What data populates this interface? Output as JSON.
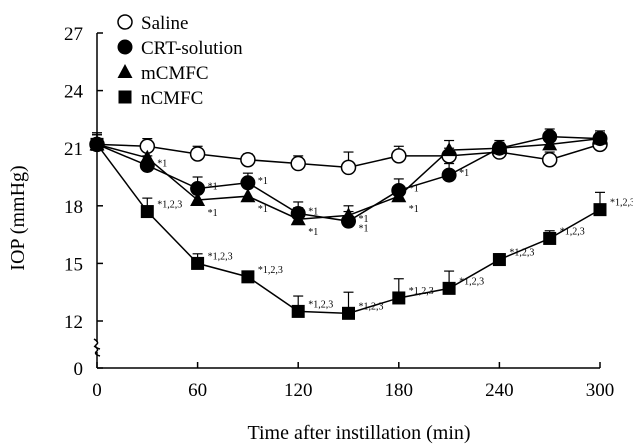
{
  "chart_data": {
    "type": "line",
    "title": "",
    "xlabel": "Time after instillation (min)",
    "ylabel": "IOP (mmHg)",
    "xlim": [
      0,
      300
    ],
    "ylim": [
      0,
      27
    ],
    "y_axis_break": true,
    "x_ticks": [
      0,
      60,
      120,
      180,
      240,
      300
    ],
    "y_ticks": [
      0,
      12,
      15,
      18,
      21,
      24,
      27
    ],
    "grid": false,
    "legend_position": "top-left",
    "x": [
      0,
      30,
      60,
      90,
      120,
      150,
      180,
      210,
      240,
      270,
      300
    ],
    "series": [
      {
        "name": "Saline",
        "marker": "circle-open",
        "color": "#000000",
        "values": [
          21.2,
          21.1,
          20.7,
          20.4,
          20.2,
          20.0,
          20.6,
          20.6,
          20.8,
          20.4,
          21.2
        ],
        "errors": [
          0.5,
          0.4,
          0.4,
          0.3,
          0.4,
          0.8,
          0.5,
          0.4,
          0.3,
          0.4,
          0.3
        ],
        "labels": [
          "",
          "",
          "",
          "",
          "",
          "",
          "",
          "",
          "",
          "",
          ""
        ]
      },
      {
        "name": "CRT-solution",
        "marker": "circle-filled",
        "color": "#000000",
        "values": [
          21.2,
          20.1,
          18.9,
          19.2,
          17.6,
          17.2,
          18.8,
          19.6,
          21.0,
          21.6,
          21.5
        ],
        "errors": [
          0.6,
          0.5,
          0.6,
          0.5,
          0.6,
          0.5,
          0.6,
          0.6,
          0.3,
          0.4,
          0.3
        ],
        "labels": [
          "",
          "*1",
          "*1",
          "*1",
          "*1",
          "*1",
          "*1",
          "*1",
          "",
          "",
          ""
        ]
      },
      {
        "name": "mCMFC",
        "marker": "triangle-filled",
        "color": "#000000",
        "values": [
          21.2,
          20.5,
          18.3,
          18.5,
          17.3,
          17.5,
          18.5,
          20.9,
          21.0,
          21.2,
          21.5
        ],
        "errors": [
          0.6,
          0.5,
          0.6,
          0.5,
          0.6,
          0.5,
          0.5,
          0.5,
          0.4,
          0.4,
          0.4
        ],
        "labels": [
          "",
          "",
          "*1",
          "*1",
          "*1",
          "*1",
          "*1",
          "",
          "",
          "",
          ""
        ]
      },
      {
        "name": "nCMFC",
        "marker": "square-filled",
        "color": "#000000",
        "values": [
          21.2,
          17.7,
          15.0,
          14.3,
          12.5,
          12.4,
          13.2,
          13.7,
          15.2,
          16.3,
          17.8
        ],
        "errors": [
          0.5,
          0.7,
          0.5,
          0.3,
          0.8,
          1.1,
          1.0,
          0.9,
          0.3,
          0.4,
          0.9
        ],
        "labels": [
          "",
          "*1,2,3",
          "*1,2,3",
          "*1,2,3",
          "*1,2,3",
          "*1,2,3",
          "*1,2,3",
          "*1,2,3",
          "*1,2,3",
          "*1,2,3",
          "*1,2,3"
        ]
      }
    ]
  }
}
